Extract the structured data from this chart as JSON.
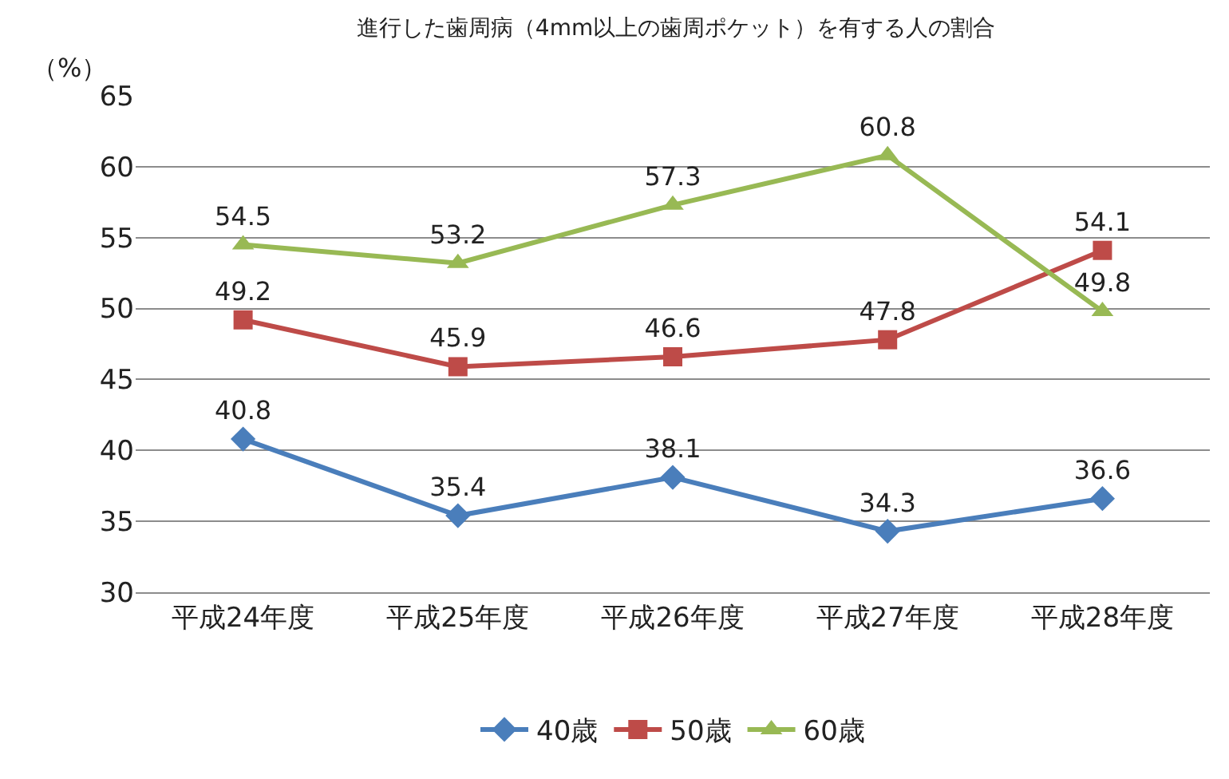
{
  "chart_data": {
    "type": "line",
    "title": "進行した歯周病（4mm以上の歯周ポケット）を有する人の割合",
    "ylabel": "（%）",
    "categories": [
      "平成24年度",
      "平成25年度",
      "平成26年度",
      "平成27年度",
      "平成28年度"
    ],
    "series": [
      {
        "name": "40歳",
        "color": "#4a7ebb",
        "marker": "diamond",
        "values": [
          40.8,
          35.4,
          38.1,
          34.3,
          36.6
        ]
      },
      {
        "name": "50歳",
        "color": "#be4b48",
        "marker": "square",
        "values": [
          49.2,
          45.9,
          46.6,
          47.8,
          54.1
        ]
      },
      {
        "name": "60歳",
        "color": "#98b954",
        "marker": "triangle",
        "values": [
          54.5,
          53.2,
          57.3,
          60.8,
          49.8
        ]
      }
    ],
    "ylim": [
      30,
      65
    ],
    "yticks": [
      30,
      35,
      40,
      45,
      50,
      55,
      60,
      65
    ],
    "grid": "y",
    "legend": "bottom",
    "data_labels": true,
    "line_style": "solid"
  }
}
